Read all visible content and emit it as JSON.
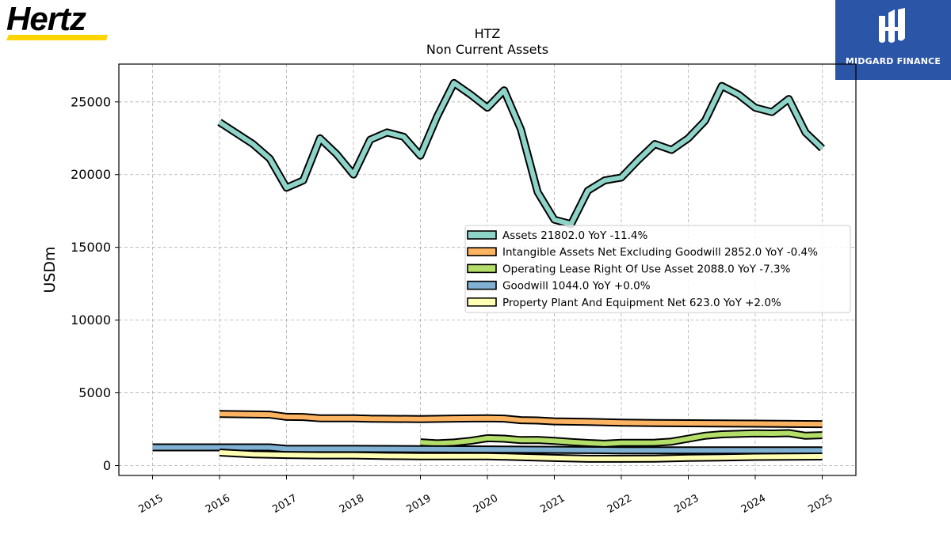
{
  "brand": {
    "name": "Hertz",
    "underline_color": "#FFD400"
  },
  "partner": {
    "name": "MIDGARD FINANCE",
    "bg_color": "#2B55A6"
  },
  "chart_data": {
    "type": "line",
    "title": "HTZ",
    "subtitle": "Non Current  Assets",
    "ylabel": "USDm",
    "xlabel": "",
    "xlim": [
      2014.5,
      2025.5
    ],
    "ylim": [
      -700,
      27500
    ],
    "grid": true,
    "legend_position": "center-right",
    "x_ticks": [
      2015,
      2016,
      2017,
      2018,
      2019,
      2020,
      2021,
      2022,
      2023,
      2024,
      2025
    ],
    "x_tick_labels": [
      "2015",
      "2016",
      "2017",
      "2018",
      "2019",
      "2020",
      "2021",
      "2022",
      "2023",
      "2024",
      "2025"
    ],
    "y_ticks": [
      0,
      5000,
      10000,
      15000,
      20000,
      25000
    ],
    "y_tick_labels": [
      "0",
      "5000",
      "10000",
      "15000",
      "20000",
      "25000"
    ],
    "series": [
      {
        "name": "Assets",
        "legend_label": "Assets  21802.0 YoY -11.4%",
        "color": "#8DD3C7",
        "points": [
          [
            2016.0,
            23600
          ],
          [
            2016.5,
            22100
          ],
          [
            2016.75,
            21100
          ],
          [
            2017.0,
            19100
          ],
          [
            2017.25,
            19600
          ],
          [
            2017.5,
            22500
          ],
          [
            2017.75,
            21400
          ],
          [
            2018.0,
            20000
          ],
          [
            2018.25,
            22400
          ],
          [
            2018.5,
            22900
          ],
          [
            2018.75,
            22600
          ],
          [
            2019.0,
            21300
          ],
          [
            2019.25,
            24000
          ],
          [
            2019.5,
            26300
          ],
          [
            2019.75,
            25500
          ],
          [
            2020.0,
            24600
          ],
          [
            2020.25,
            25800
          ],
          [
            2020.5,
            23100
          ],
          [
            2020.75,
            18800
          ],
          [
            2021.0,
            16900
          ],
          [
            2021.25,
            16600
          ],
          [
            2021.5,
            18900
          ],
          [
            2021.75,
            19600
          ],
          [
            2022.0,
            19800
          ],
          [
            2022.25,
            21000
          ],
          [
            2022.5,
            22100
          ],
          [
            2022.75,
            21700
          ],
          [
            2023.0,
            22500
          ],
          [
            2023.25,
            23700
          ],
          [
            2023.5,
            26100
          ],
          [
            2023.75,
            25500
          ],
          [
            2024.0,
            24600
          ],
          [
            2024.25,
            24300
          ],
          [
            2024.5,
            25200
          ],
          [
            2024.75,
            22900
          ],
          [
            2025.0,
            21800
          ]
        ]
      },
      {
        "name": "Intangible Assets Net Excluding Goodwill",
        "legend_label": "Intangible Assets Net Excluding Goodwill  2852.0 YoY -0.4%",
        "color": "#FDB462",
        "points": [
          [
            2016.0,
            3550
          ],
          [
            2016.75,
            3500
          ],
          [
            2017.0,
            3350
          ],
          [
            2017.25,
            3340
          ],
          [
            2017.5,
            3250
          ],
          [
            2018.0,
            3250
          ],
          [
            2018.25,
            3220
          ],
          [
            2019.0,
            3200
          ],
          [
            2019.5,
            3230
          ],
          [
            2020.0,
            3250
          ],
          [
            2020.25,
            3230
          ],
          [
            2020.5,
            3120
          ],
          [
            2020.75,
            3100
          ],
          [
            2021.0,
            3040
          ],
          [
            2021.5,
            3000
          ],
          [
            2022.0,
            2950
          ],
          [
            2022.5,
            2920
          ],
          [
            2023.0,
            2910
          ],
          [
            2024.0,
            2880
          ],
          [
            2025.0,
            2852
          ]
        ]
      },
      {
        "name": "Operating Lease Right Of Use Asset",
        "legend_label": "Operating Lease Right Of Use Asset  2088.0 YoY -7.3%",
        "color": "#B3DE69",
        "points": [
          [
            2019.0,
            1600
          ],
          [
            2019.25,
            1530
          ],
          [
            2019.5,
            1580
          ],
          [
            2019.75,
            1700
          ],
          [
            2020.0,
            1880
          ],
          [
            2020.25,
            1850
          ],
          [
            2020.5,
            1750
          ],
          [
            2020.75,
            1760
          ],
          [
            2021.0,
            1700
          ],
          [
            2021.25,
            1620
          ],
          [
            2021.5,
            1550
          ],
          [
            2021.75,
            1500
          ],
          [
            2022.0,
            1560
          ],
          [
            2022.25,
            1560
          ],
          [
            2022.5,
            1570
          ],
          [
            2022.75,
            1650
          ],
          [
            2023.0,
            1850
          ],
          [
            2023.25,
            2050
          ],
          [
            2023.5,
            2150
          ],
          [
            2023.75,
            2180
          ],
          [
            2024.0,
            2220
          ],
          [
            2024.25,
            2200
          ],
          [
            2024.5,
            2230
          ],
          [
            2024.75,
            2050
          ],
          [
            2025.0,
            2088
          ]
        ]
      },
      {
        "name": "Goodwill",
        "legend_label": "Goodwill  1044.0 YoY +0.0%",
        "color": "#80B1D3",
        "points": [
          [
            2015.0,
            1250
          ],
          [
            2016.0,
            1250
          ],
          [
            2016.75,
            1250
          ],
          [
            2017.0,
            1150
          ],
          [
            2018.0,
            1150
          ],
          [
            2019.0,
            1130
          ],
          [
            2020.0,
            1110
          ],
          [
            2021.0,
            1080
          ],
          [
            2022.0,
            1050
          ],
          [
            2023.0,
            1050
          ],
          [
            2024.0,
            1044
          ],
          [
            2025.0,
            1044
          ]
        ]
      },
      {
        "name": "Property Plant And Equipment Net",
        "legend_label": "Property Plant And Equipment Net  623.0 YoY +2.0%",
        "color": "#FFFFB3",
        "points": [
          [
            2016.0,
            900
          ],
          [
            2016.5,
            780
          ],
          [
            2017.0,
            730
          ],
          [
            2017.5,
            700
          ],
          [
            2018.0,
            700
          ],
          [
            2018.5,
            660
          ],
          [
            2019.0,
            640
          ],
          [
            2019.5,
            640
          ],
          [
            2020.0,
            640
          ],
          [
            2020.5,
            590
          ],
          [
            2021.0,
            520
          ],
          [
            2021.5,
            470
          ],
          [
            2022.0,
            470
          ],
          [
            2022.5,
            480
          ],
          [
            2023.0,
            530
          ],
          [
            2023.5,
            560
          ],
          [
            2024.0,
            600
          ],
          [
            2024.5,
            610
          ],
          [
            2025.0,
            623
          ]
        ]
      }
    ]
  }
}
